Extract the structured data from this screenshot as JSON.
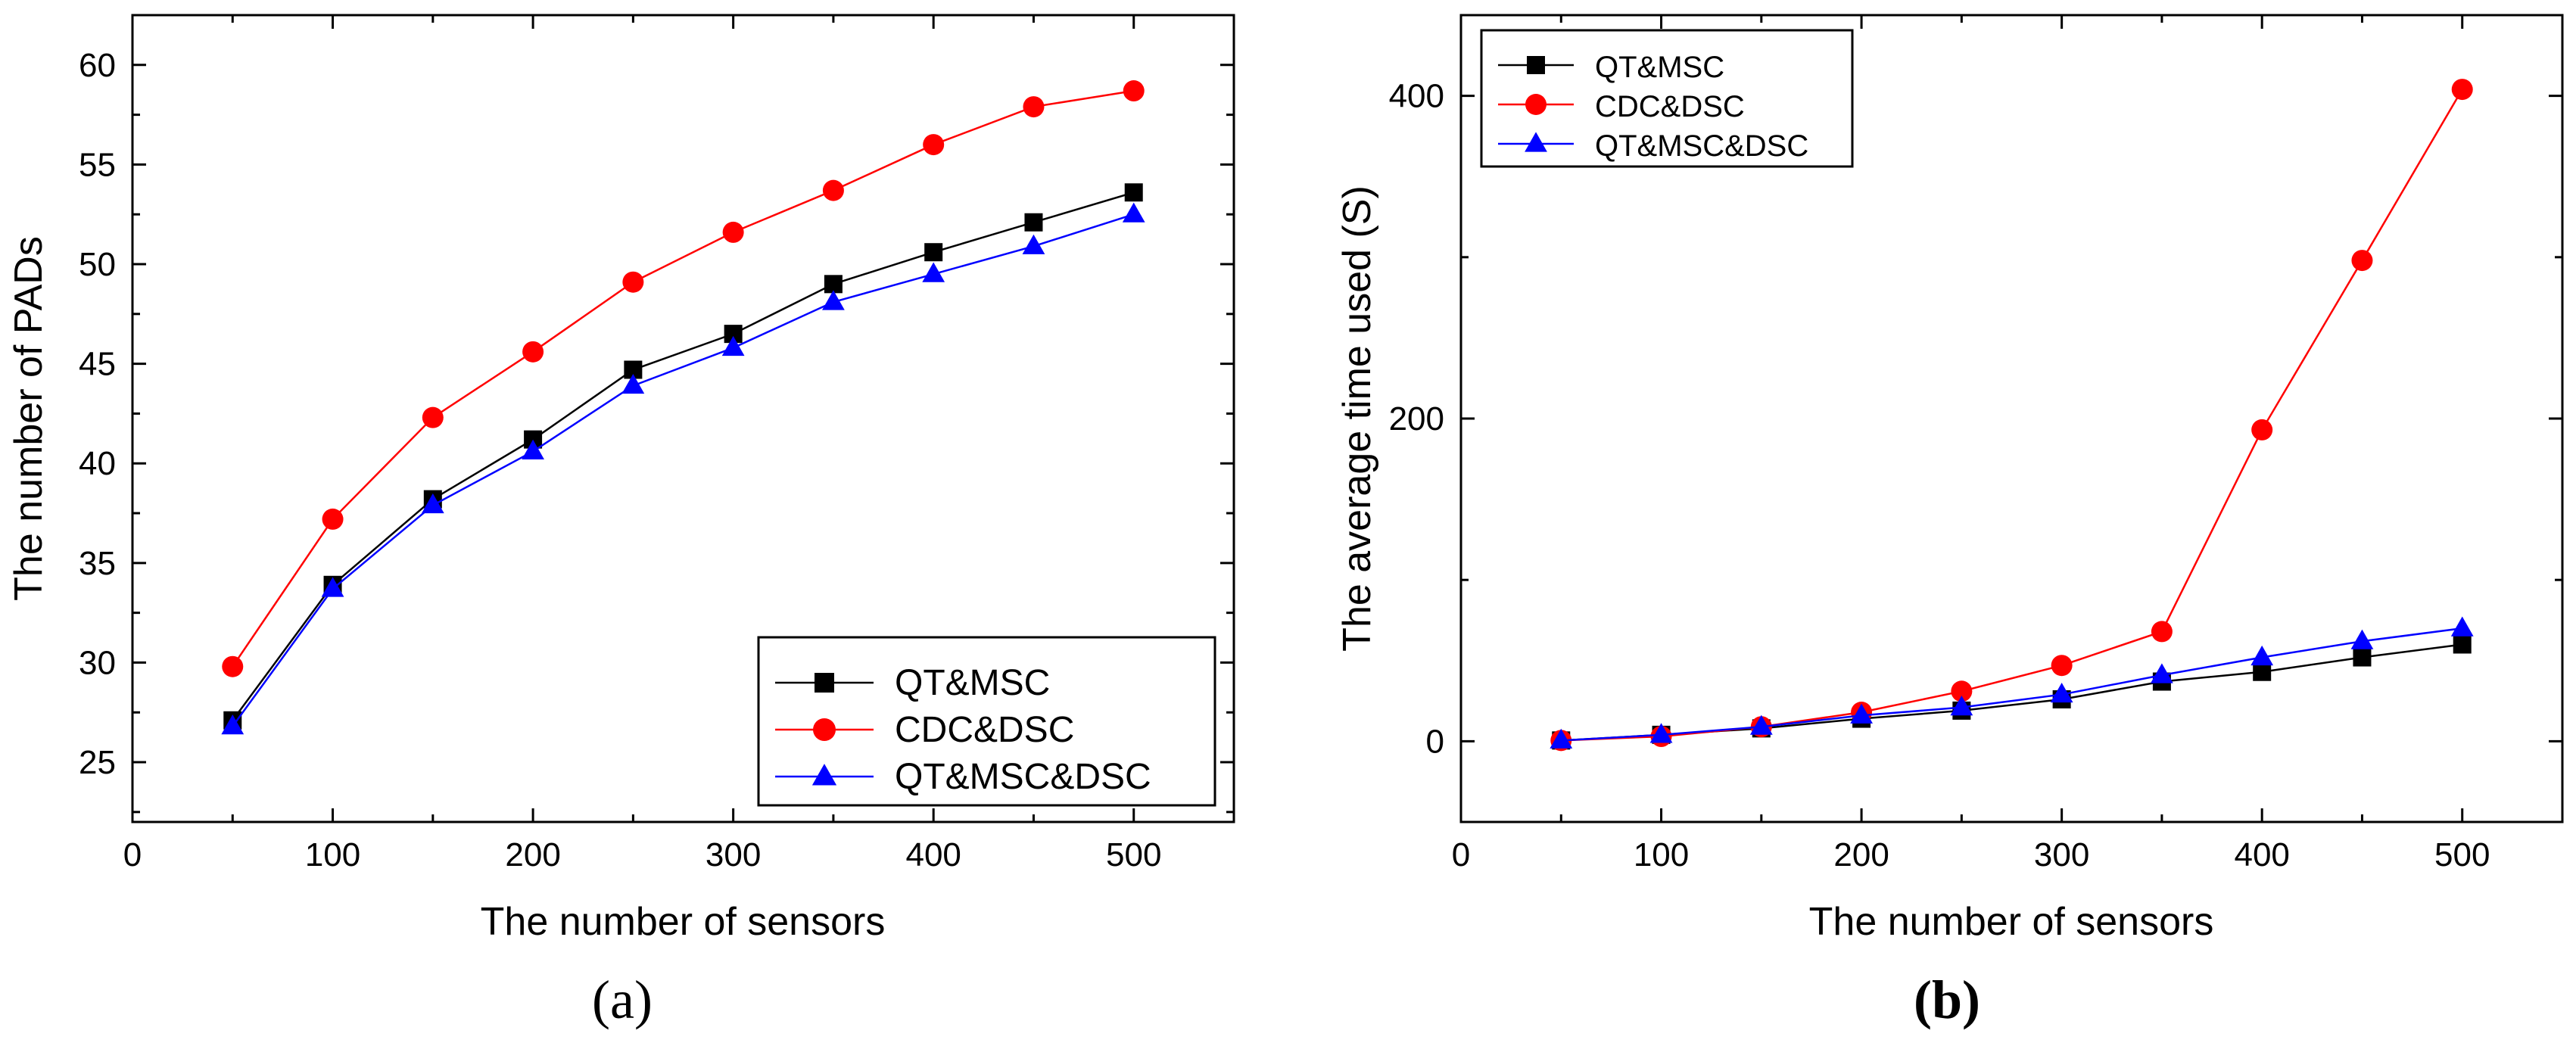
{
  "chart_data": [
    {
      "type": "line",
      "panel": "a",
      "panel_label": "(a)",
      "xlabel": "The number of sensors",
      "ylabel": "The number of PADs",
      "xlim": [
        0,
        550
      ],
      "ylim": [
        22,
        62.5
      ],
      "xticks": [
        0,
        100,
        200,
        300,
        400,
        500
      ],
      "yticks": [
        25,
        30,
        35,
        40,
        45,
        50,
        55,
        60
      ],
      "legend_position": "bottom-right",
      "x": [
        50,
        100,
        150,
        200,
        250,
        300,
        350,
        400,
        450,
        500
      ],
      "series": [
        {
          "name": "QT&MSC",
          "color": "#000000",
          "marker": "square",
          "values": [
            27.1,
            33.9,
            38.2,
            41.2,
            44.7,
            46.5,
            49.0,
            50.6,
            52.1,
            53.6
          ]
        },
        {
          "name": "CDC&DSC",
          "color": "#ff0000",
          "marker": "circle",
          "values": [
            29.8,
            37.2,
            42.3,
            45.6,
            49.1,
            51.6,
            53.7,
            56.0,
            57.9,
            58.7
          ]
        },
        {
          "name": "QT&MSC&DSC",
          "color": "#0000ff",
          "marker": "triangle",
          "values": [
            26.8,
            33.7,
            37.9,
            40.6,
            43.9,
            45.8,
            48.1,
            49.5,
            50.9,
            52.5
          ]
        }
      ]
    },
    {
      "type": "line",
      "panel": "b",
      "panel_label": "(b)",
      "xlabel": "The number of sensors",
      "ylabel": "The average time used (S)",
      "xlim": [
        0,
        550
      ],
      "ylim": [
        -50,
        450
      ],
      "xticks": [
        0,
        100,
        200,
        300,
        400,
        500
      ],
      "yticks": [
        0,
        200,
        400
      ],
      "legend_position": "top-left",
      "x": [
        50,
        100,
        150,
        200,
        250,
        300,
        350,
        400,
        450,
        500
      ],
      "series": [
        {
          "name": "QT&MSC",
          "color": "#000000",
          "marker": "square",
          "values": [
            0.5,
            4,
            8,
            14,
            19,
            26,
            37,
            43,
            52,
            60
          ]
        },
        {
          "name": "CDC&DSC",
          "color": "#ff0000",
          "marker": "circle",
          "values": [
            0.5,
            3,
            9,
            18,
            31,
            47,
            68,
            193,
            298,
            404
          ]
        },
        {
          "name": "QT&MSC&DSC",
          "color": "#0000ff",
          "marker": "triangle",
          "values": [
            0.5,
            4,
            9,
            16,
            21,
            29,
            41,
            52,
            62,
            70
          ]
        }
      ]
    }
  ]
}
